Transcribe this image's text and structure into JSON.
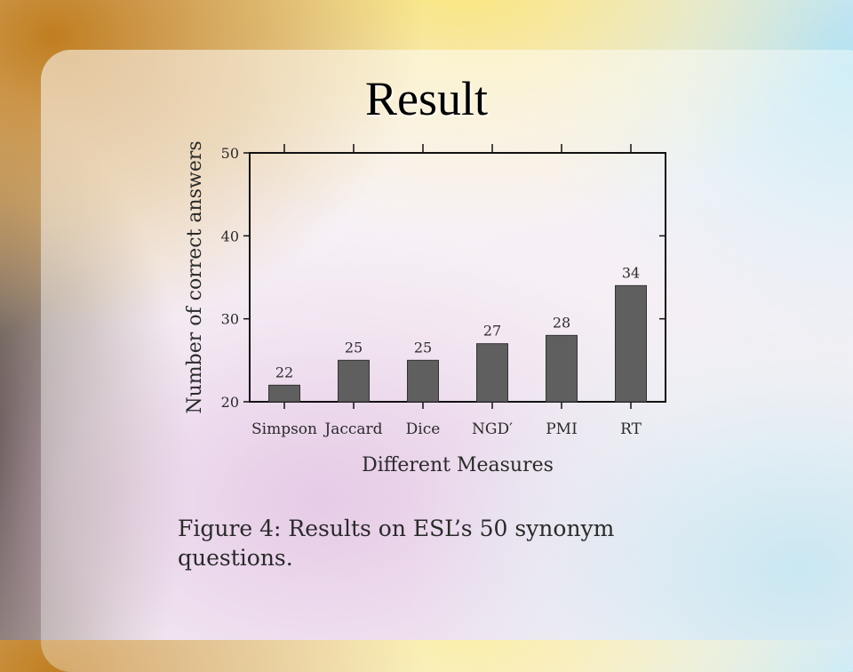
{
  "slide": {
    "title": "Result"
  },
  "caption": "Figure 4: Results on ESL’s 50 synonym questions.",
  "chart_data": {
    "type": "bar",
    "title": "",
    "categories": [
      "Simpson",
      "Jaccard",
      "Dice",
      "NGD′",
      "PMI",
      "RT"
    ],
    "values": [
      22,
      25,
      25,
      27,
      28,
      34
    ],
    "data_labels": [
      "22",
      "25",
      "25",
      "27",
      "28",
      "34"
    ],
    "xlabel": "Different Measures",
    "ylabel": "Number of correct answers",
    "ylim": [
      20,
      50
    ],
    "yticks": [
      20,
      30,
      40,
      50
    ],
    "grid": false,
    "bar_color": "#5f5f5f"
  }
}
